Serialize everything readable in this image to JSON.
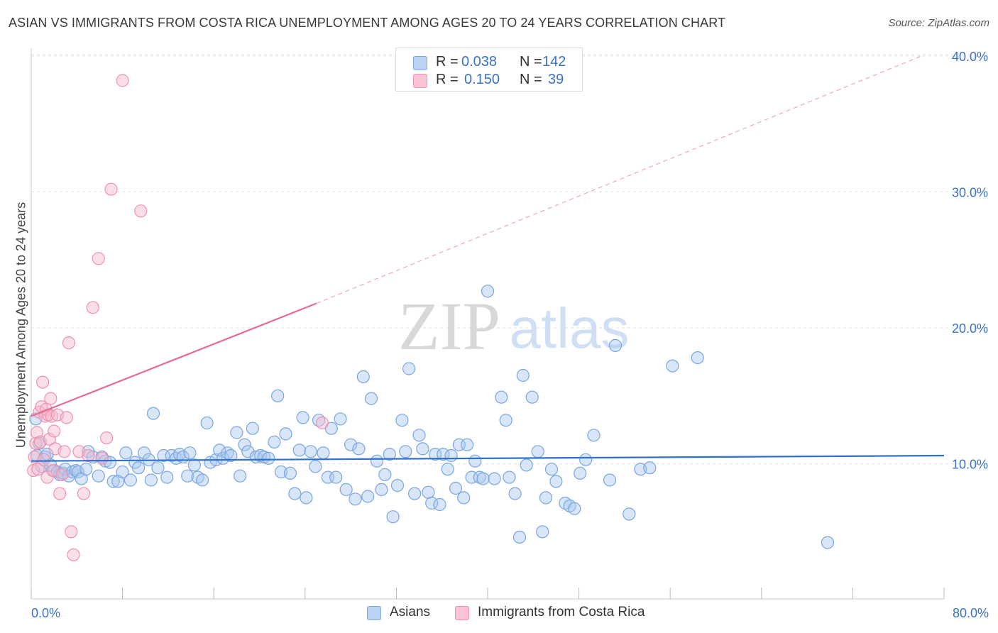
{
  "title": "ASIAN VS IMMIGRANTS FROM COSTA RICA UNEMPLOYMENT AMONG AGES 20 TO 24 YEARS CORRELATION CHART",
  "source": "Source: ZipAtlas.com",
  "watermark": {
    "zip": "ZIP",
    "atlas": "atlas"
  },
  "legend_top": {
    "rows": [
      {
        "r_label": "R =",
        "r_value": "0.038",
        "n_label": "N =",
        "n_value": "142"
      },
      {
        "r_label": "R =",
        "r_value": "0.150",
        "n_label": "N =",
        "n_value": "39"
      }
    ]
  },
  "legend_bottom": {
    "series1": "Asians",
    "series2": "Immigrants from Costa Rica"
  },
  "colors": {
    "asians_fill": "#a9c8f0",
    "asians_stroke": "#7aa6e0",
    "asians_line": "#2e72cc",
    "costa_fill": "#f7b8cc",
    "costa_stroke": "#ee92b0",
    "costa_line": "#e56a92",
    "axis_text": "#3a72c8"
  },
  "chart_data": {
    "type": "scatter",
    "title": "ASIAN VS IMMIGRANTS FROM COSTA RICA UNEMPLOYMENT AMONG AGES 20 TO 24 YEARS CORRELATION CHART",
    "xlabel": "",
    "ylabel": "Unemployment Among Ages 20 to 24 years",
    "xlim": [
      0,
      80
    ],
    "ylim": [
      0,
      40
    ],
    "x_tick_labels": [
      "0.0%",
      "80.0%"
    ],
    "y_tick_labels": [
      "10.0%",
      "20.0%",
      "30.0%",
      "40.0%"
    ],
    "y_ticks": [
      10,
      20,
      30,
      40
    ],
    "grid": "horizontal dashed",
    "series": [
      {
        "name": "Asians",
        "R": 0.038,
        "N": 142,
        "trend": {
          "x": [
            0,
            80
          ],
          "y": [
            10.2,
            10.6
          ],
          "style": "solid"
        },
        "points": [
          [
            0.4,
            13.3
          ],
          [
            0.5,
            10.6
          ],
          [
            0.7,
            11.5
          ],
          [
            0.9,
            9.8
          ],
          [
            1.2,
            10.5
          ],
          [
            1.4,
            10.7
          ],
          [
            1.7,
            9.9
          ],
          [
            2.0,
            9.5
          ],
          [
            2.3,
            9.4
          ],
          [
            2.5,
            9.2
          ],
          [
            2.8,
            9.3
          ],
          [
            3.0,
            9.6
          ],
          [
            3.3,
            9.1
          ],
          [
            3.6,
            9.4
          ],
          [
            3.9,
            9.5
          ],
          [
            4.1,
            9.4
          ],
          [
            4.4,
            8.9
          ],
          [
            4.8,
            9.6
          ],
          [
            5.0,
            10.9
          ],
          [
            5.4,
            10.5
          ],
          [
            5.9,
            9.1
          ],
          [
            6.2,
            10.5
          ],
          [
            6.5,
            10.2
          ],
          [
            6.9,
            10.1
          ],
          [
            7.2,
            8.7
          ],
          [
            7.6,
            8.7
          ],
          [
            8.0,
            9.4
          ],
          [
            8.3,
            10.8
          ],
          [
            8.7,
            8.8
          ],
          [
            9.1,
            10.1
          ],
          [
            9.4,
            9.7
          ],
          [
            9.9,
            10.8
          ],
          [
            10.3,
            10.3
          ],
          [
            10.7,
            13.7
          ],
          [
            11.1,
            9.7
          ],
          [
            11.6,
            10.6
          ],
          [
            11.9,
            9.0
          ],
          [
            12.3,
            10.6
          ],
          [
            12.7,
            10.4
          ],
          [
            13.0,
            10.7
          ],
          [
            13.3,
            10.5
          ],
          [
            13.7,
            9.1
          ],
          [
            13.9,
            10.8
          ],
          [
            14.3,
            9.9
          ],
          [
            14.6,
            9.0
          ],
          [
            15.0,
            8.8
          ],
          [
            15.4,
            13.0
          ],
          [
            15.7,
            10.1
          ],
          [
            16.2,
            10.3
          ],
          [
            16.5,
            11.0
          ],
          [
            16.8,
            10.4
          ],
          [
            17.2,
            10.8
          ],
          [
            17.5,
            10.6
          ],
          [
            18.0,
            12.3
          ],
          [
            18.3,
            9.1
          ],
          [
            18.7,
            11.4
          ],
          [
            19.0,
            10.9
          ],
          [
            19.4,
            12.6
          ],
          [
            19.7,
            10.5
          ],
          [
            20.1,
            10.6
          ],
          [
            20.4,
            10.5
          ],
          [
            20.8,
            10.4
          ],
          [
            21.3,
            11.6
          ],
          [
            21.6,
            15.0
          ],
          [
            21.9,
            9.4
          ],
          [
            22.3,
            12.2
          ],
          [
            22.7,
            9.3
          ],
          [
            23.1,
            7.8
          ],
          [
            23.5,
            11.0
          ],
          [
            23.8,
            13.4
          ],
          [
            24.1,
            7.5
          ],
          [
            24.5,
            10.9
          ],
          [
            24.9,
            9.8
          ],
          [
            25.2,
            13.2
          ],
          [
            25.6,
            10.8
          ],
          [
            26.0,
            9.0
          ],
          [
            26.3,
            12.6
          ],
          [
            26.7,
            9.0
          ],
          [
            27.1,
            13.3
          ],
          [
            27.6,
            8.1
          ],
          [
            28.0,
            11.4
          ],
          [
            28.4,
            7.4
          ],
          [
            28.7,
            11.1
          ],
          [
            29.1,
            16.4
          ],
          [
            29.5,
            7.6
          ],
          [
            29.8,
            14.8
          ],
          [
            30.3,
            10.2
          ],
          [
            30.7,
            8.1
          ],
          [
            31.0,
            9.2
          ],
          [
            31.4,
            10.7
          ],
          [
            31.7,
            6.1
          ],
          [
            32.1,
            8.4
          ],
          [
            32.5,
            13.2
          ],
          [
            32.8,
            10.9
          ],
          [
            33.1,
            17.0
          ],
          [
            33.6,
            7.8
          ],
          [
            34.0,
            12.1
          ],
          [
            34.3,
            11.1
          ],
          [
            34.8,
            7.9
          ],
          [
            35.1,
            7.1
          ],
          [
            35.4,
            10.7
          ],
          [
            35.8,
            7.0
          ],
          [
            36.1,
            10.7
          ],
          [
            36.5,
            9.6
          ],
          [
            36.8,
            10.6
          ],
          [
            37.2,
            8.2
          ],
          [
            37.5,
            11.4
          ],
          [
            37.9,
            7.5
          ],
          [
            38.2,
            11.4
          ],
          [
            38.6,
            9.0
          ],
          [
            38.9,
            10.2
          ],
          [
            39.3,
            9.0
          ],
          [
            39.6,
            8.9
          ],
          [
            40.0,
            22.7
          ],
          [
            40.6,
            8.9
          ],
          [
            41.2,
            14.9
          ],
          [
            41.6,
            13.2
          ],
          [
            41.9,
            9.0
          ],
          [
            42.4,
            7.8
          ],
          [
            42.8,
            4.6
          ],
          [
            43.1,
            16.5
          ],
          [
            43.4,
            9.9
          ],
          [
            43.9,
            14.9
          ],
          [
            44.4,
            10.9
          ],
          [
            44.8,
            5.0
          ],
          [
            45.1,
            7.5
          ],
          [
            45.6,
            9.6
          ],
          [
            46.0,
            8.7
          ],
          [
            46.8,
            7.1
          ],
          [
            47.2,
            6.9
          ],
          [
            47.6,
            6.7
          ],
          [
            48.1,
            9.3
          ],
          [
            48.6,
            10.3
          ],
          [
            49.3,
            12.1
          ],
          [
            50.7,
            8.8
          ],
          [
            51.2,
            18.7
          ],
          [
            52.4,
            6.3
          ],
          [
            53.4,
            9.6
          ],
          [
            54.2,
            9.7
          ],
          [
            56.2,
            17.2
          ],
          [
            58.4,
            17.8
          ],
          [
            69.8,
            4.2
          ],
          [
            10.5,
            8.8
          ]
        ]
      },
      {
        "name": "Immigrants from Costa Rica",
        "R": 0.15,
        "N": 39,
        "trend": {
          "x": [
            0,
            25
          ],
          "y": [
            13.5,
            21.8
          ],
          "style": "solid",
          "extension": {
            "x": [
              25,
              78
            ],
            "y": [
              21.8,
              40.0
            ],
            "style": "dashed"
          }
        },
        "points": [
          [
            0.2,
            9.5
          ],
          [
            0.3,
            10.5
          ],
          [
            0.4,
            11.5
          ],
          [
            0.5,
            12.3
          ],
          [
            0.6,
            9.6
          ],
          [
            0.7,
            13.8
          ],
          [
            0.8,
            11.6
          ],
          [
            0.9,
            14.2
          ],
          [
            1.0,
            16.0
          ],
          [
            1.1,
            10.3
          ],
          [
            1.2,
            13.5
          ],
          [
            1.3,
            14.0
          ],
          [
            1.4,
            9.0
          ],
          [
            1.5,
            13.6
          ],
          [
            1.6,
            11.8
          ],
          [
            1.7,
            14.8
          ],
          [
            1.8,
            13.5
          ],
          [
            1.9,
            9.5
          ],
          [
            2.0,
            12.4
          ],
          [
            2.1,
            11.1
          ],
          [
            2.3,
            13.6
          ],
          [
            2.5,
            7.8
          ],
          [
            2.7,
            9.2
          ],
          [
            2.9,
            10.9
          ],
          [
            3.1,
            13.4
          ],
          [
            3.3,
            18.9
          ],
          [
            3.5,
            5.0
          ],
          [
            3.7,
            3.3
          ],
          [
            4.2,
            10.9
          ],
          [
            4.6,
            7.8
          ],
          [
            5.0,
            10.6
          ],
          [
            5.4,
            21.5
          ],
          [
            5.9,
            25.1
          ],
          [
            6.2,
            10.4
          ],
          [
            6.6,
            11.9
          ],
          [
            7.0,
            30.2
          ],
          [
            8.0,
            38.2
          ],
          [
            9.6,
            28.6
          ],
          [
            25.5,
            13.0
          ]
        ]
      }
    ]
  }
}
